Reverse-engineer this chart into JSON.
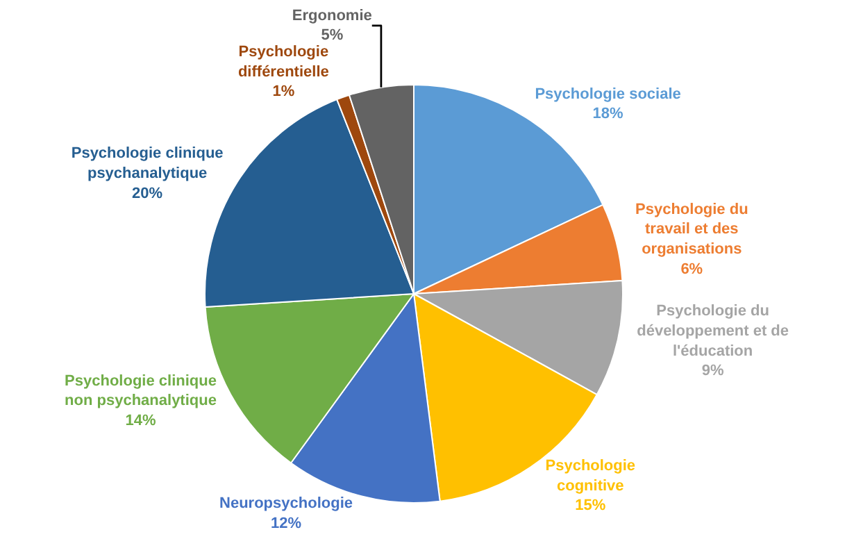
{
  "chart_data": {
    "type": "pie",
    "categories": [
      "Psychologie sociale",
      "Psychologie du travail et des organisations",
      "Psychologie du développement et de l'éducation",
      "Psychologie cognitive",
      "Neuropsychologie",
      "Psychologie clinique non psychanalytique",
      "Psychologie clinique psychanalytique",
      "Psychologie différentielle",
      "Ergonomie"
    ],
    "values": [
      18,
      6,
      9,
      15,
      12,
      14,
      20,
      1,
      5
    ],
    "colors": [
      "#5b9bd5",
      "#ed7d31",
      "#a5a5a5",
      "#ffc000",
      "#4472c4",
      "#70ad47",
      "#255e91",
      "#9e480e",
      "#636363"
    ],
    "value_labels": [
      "18%",
      "6%",
      "9%",
      "15%",
      "12%",
      "14%",
      "20%",
      "1%",
      "5%"
    ],
    "legend": false
  }
}
